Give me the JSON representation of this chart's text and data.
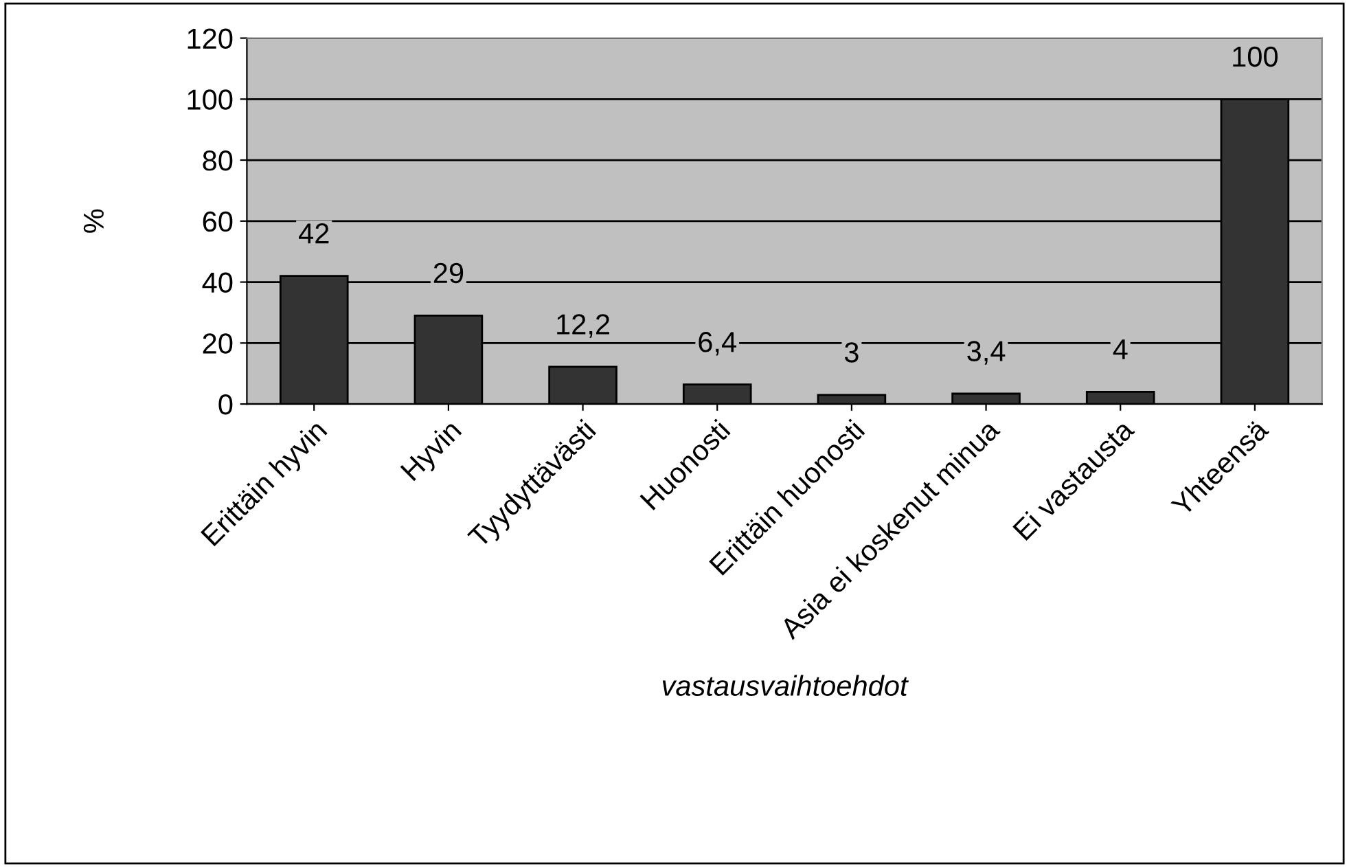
{
  "chart_data": {
    "type": "bar",
    "xlabel": "vastausvaihtoehdot",
    "ylabel": "%",
    "categories": [
      "Erittäin hyvin",
      "Hyvin",
      "Tyydyttävästi",
      "Huonosti",
      "Erittäin huonosti",
      "Asia ei koskenut minua",
      "Ei vastausta",
      "Yhteensä"
    ],
    "values": [
      42,
      29,
      12.2,
      6.4,
      3,
      3.4,
      4,
      100
    ],
    "value_labels": [
      "42",
      "29",
      "12,2",
      "6,4",
      "3",
      "3,4",
      "4",
      "100"
    ],
    "color": "#333333",
    "ylim": [
      0,
      120
    ],
    "yticks": [
      0,
      20,
      40,
      60,
      80,
      100,
      120
    ],
    "grid": "y"
  }
}
